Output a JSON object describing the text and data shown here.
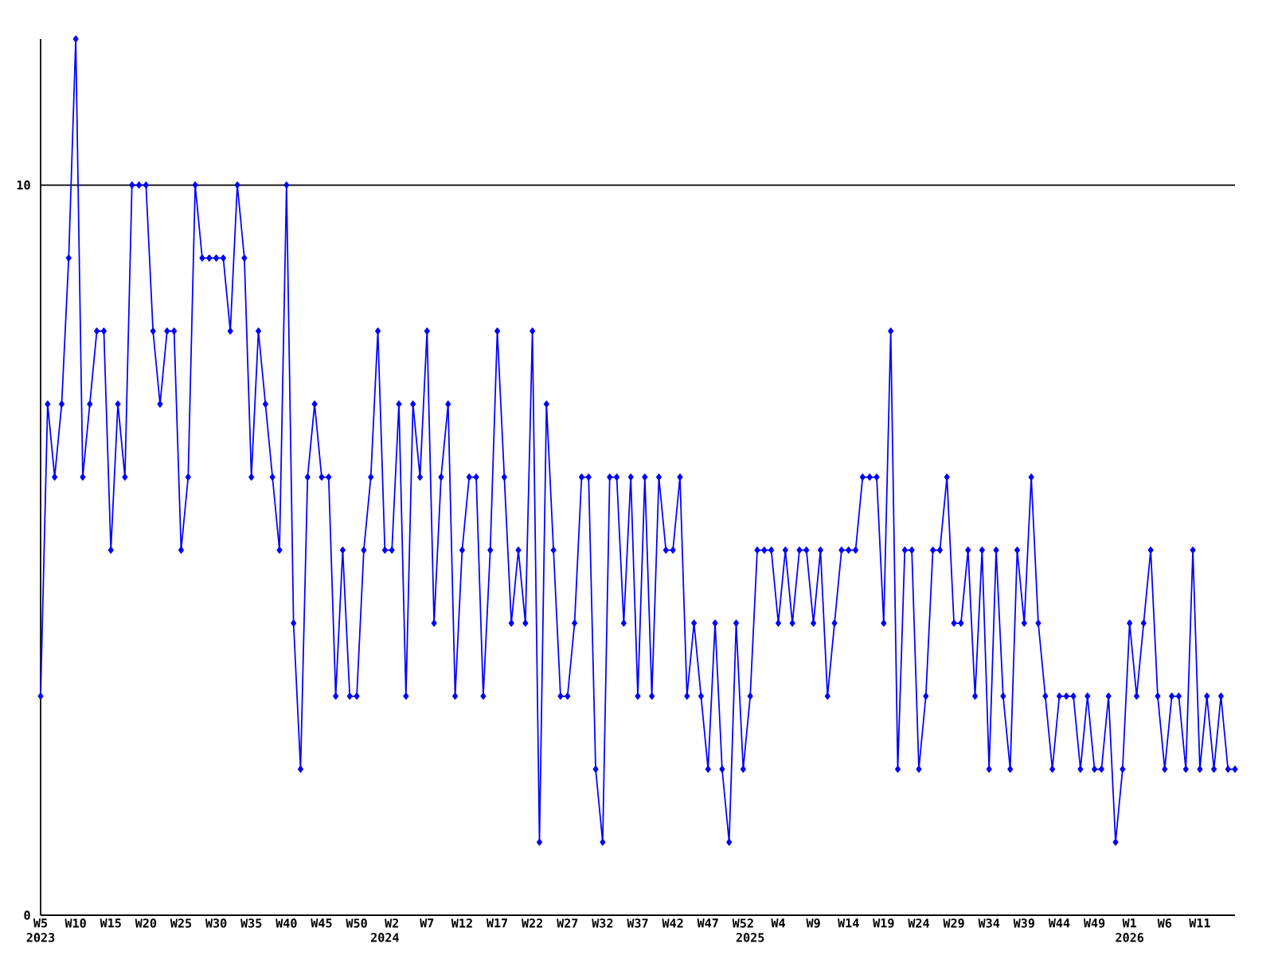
{
  "chart_data": {
    "type": "line",
    "color": "#0000ff",
    "marker": "diamond",
    "grid": "y",
    "ylim": [
      0,
      12
    ],
    "yticks": [
      0,
      10
    ],
    "categories": [
      "W5 2023",
      null,
      null,
      null,
      null,
      "W10",
      null,
      null,
      null,
      null,
      "W15",
      null,
      null,
      null,
      null,
      "W20",
      null,
      null,
      null,
      null,
      "W25",
      null,
      null,
      null,
      null,
      "W30",
      null,
      null,
      null,
      null,
      "W35",
      null,
      null,
      null,
      null,
      "W40",
      null,
      null,
      null,
      null,
      "W45",
      null,
      null,
      null,
      null,
      "W50",
      null,
      null,
      null,
      "2024",
      "W2",
      null,
      null,
      null,
      null,
      "W7",
      null,
      null,
      null,
      null,
      "W12",
      null,
      null,
      null,
      null,
      "W17",
      null,
      null,
      null,
      null,
      "W22",
      null,
      null,
      null,
      null,
      "W27",
      null,
      null,
      null,
      null,
      "W32",
      null,
      null,
      null,
      null,
      "W37",
      null,
      null,
      null,
      null,
      "W42",
      null,
      null,
      null,
      null,
      "W47",
      null,
      null,
      null,
      null,
      "W52",
      "2025",
      null,
      null,
      null,
      "W4",
      null,
      null,
      null,
      null,
      "W9",
      null,
      null,
      null,
      null,
      "W14",
      null,
      null,
      null,
      null,
      "W19",
      null,
      null,
      null,
      null,
      "W24",
      null,
      null,
      null,
      null,
      "W29",
      null,
      null,
      null,
      null,
      "W34",
      null,
      null,
      null,
      null,
      "W39",
      null,
      null,
      null,
      null,
      "W44",
      null,
      null,
      null,
      null,
      "W49",
      null,
      null,
      null,
      null,
      "W1 2026",
      null,
      null,
      null,
      null,
      "W6",
      null,
      null,
      null,
      null,
      "W11",
      null,
      null,
      null,
      null,
      null
    ],
    "values": [
      3,
      7,
      6,
      7,
      9,
      12,
      6,
      7,
      8,
      8,
      5,
      7,
      6,
      10,
      10,
      10,
      8,
      7,
      8,
      8,
      5,
      6,
      10,
      9,
      9,
      9,
      9,
      8,
      10,
      9,
      6,
      8,
      7,
      6,
      5,
      10,
      4,
      2,
      6,
      7,
      6,
      6,
      3,
      5,
      3,
      3,
      5,
      6,
      8,
      5,
      5,
      7,
      3,
      7,
      6,
      8,
      4,
      6,
      7,
      3,
      5,
      6,
      6,
      3,
      5,
      8,
      6,
      4,
      5,
      4,
      8,
      1,
      7,
      5,
      3,
      3,
      4,
      6,
      6,
      2,
      1,
      6,
      6,
      4,
      6,
      3,
      6,
      3,
      6,
      5,
      5,
      6,
      3,
      4,
      3,
      2,
      4,
      2,
      1,
      4,
      2,
      3,
      5,
      5,
      5,
      4,
      5,
      4,
      5,
      5,
      4,
      5,
      3,
      4,
      5,
      5,
      5,
      6,
      6,
      6,
      4,
      8,
      2,
      5,
      5,
      2,
      3,
      5,
      5,
      6,
      4,
      4,
      5,
      3,
      5,
      2,
      5,
      3,
      2,
      5,
      4,
      6,
      4,
      3,
      2,
      3,
      3,
      3,
      2,
      3,
      2,
      2,
      3,
      1,
      2,
      4,
      3,
      4,
      5,
      3,
      2,
      3,
      3,
      2,
      5,
      2,
      3,
      2,
      3,
      2,
      2
    ]
  }
}
